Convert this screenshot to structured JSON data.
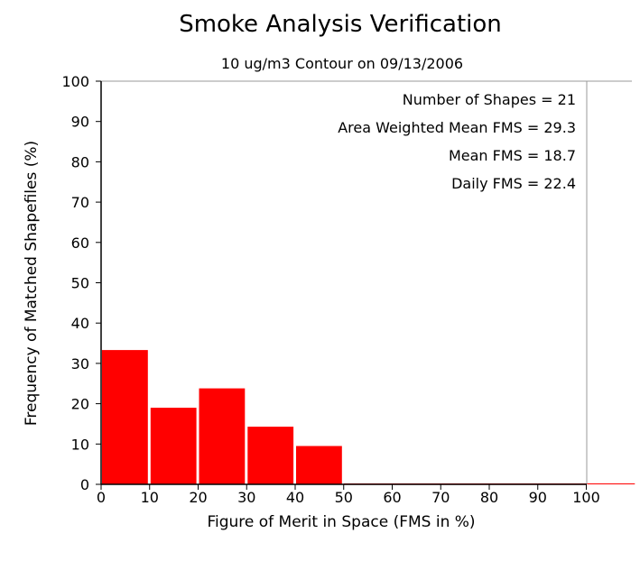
{
  "chart_data": {
    "type": "bar",
    "title": "Smoke Analysis Verification",
    "subtitle": "10 ug/m3 Contour on 09/13/2006",
    "xlabel": "Figure of Merit in Space (FMS in %)",
    "ylabel": "Frequency of Matched Shapefiles (%)",
    "xlim": [
      0,
      110
    ],
    "ylim": [
      0,
      100
    ],
    "x_ticks": [
      0,
      10,
      20,
      30,
      40,
      50,
      60,
      70,
      80,
      90,
      100
    ],
    "y_ticks": [
      0,
      10,
      20,
      30,
      40,
      50,
      60,
      70,
      80,
      90,
      100
    ],
    "bin_width": 10,
    "bins": [
      {
        "start": 0,
        "value": 33.3
      },
      {
        "start": 10,
        "value": 19.0
      },
      {
        "start": 20,
        "value": 23.8
      },
      {
        "start": 30,
        "value": 14.3
      },
      {
        "start": 40,
        "value": 9.5
      },
      {
        "start": 50,
        "value": 0
      },
      {
        "start": 60,
        "value": 0
      },
      {
        "start": 70,
        "value": 0
      },
      {
        "start": 80,
        "value": 0
      },
      {
        "start": 90,
        "value": 0
      },
      {
        "start": 100,
        "value": 0
      }
    ],
    "annotations": [
      "Number of Shapes = 21",
      "Area Weighted Mean FMS = 29.3",
      "Mean FMS = 18.7",
      "Daily FMS = 22.4"
    ],
    "bar_color": "#ff0000",
    "axis_color": "#000000",
    "frame_color": "#999999",
    "grid": false
  }
}
